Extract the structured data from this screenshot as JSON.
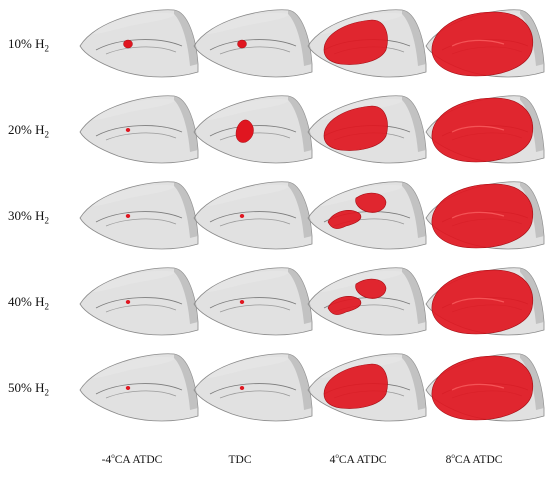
{
  "rows": [
    {
      "label_main": "10% H",
      "label_sub": "2"
    },
    {
      "label_main": "20% H",
      "label_sub": "2"
    },
    {
      "label_main": "30% H",
      "label_sub": "2"
    },
    {
      "label_main": "40% H",
      "label_sub": "2"
    },
    {
      "label_main": "50% H",
      "label_sub": "2"
    }
  ],
  "columns": [
    {
      "pre": "-4",
      "sup": "o",
      "post": "CA ATDC"
    },
    {
      "pre": "TDC",
      "sup": "",
      "post": ""
    },
    {
      "pre": "4",
      "sup": "o",
      "post": "CA ATDC"
    },
    {
      "pre": "8",
      "sup": "o",
      "post": "CA ATDC"
    }
  ],
  "colors": {
    "flame": "#e01620",
    "flame_dark": "#a50d14",
    "chamber": "#c9c9c9",
    "chamber_edge": "#8a8a8a"
  },
  "panels": [
    [
      "kernel-small",
      "kernel-small",
      "flame-medium",
      "flame-large"
    ],
    [
      "kernel-dot",
      "kernel-medium",
      "flame-medium",
      "flame-large"
    ],
    [
      "kernel-dot",
      "kernel-dot",
      "flame-split",
      "flame-large"
    ],
    [
      "kernel-dot",
      "kernel-dot",
      "flame-split",
      "flame-large"
    ],
    [
      "kernel-dot",
      "kernel-dot",
      "flame-medium",
      "flame-large"
    ]
  ]
}
